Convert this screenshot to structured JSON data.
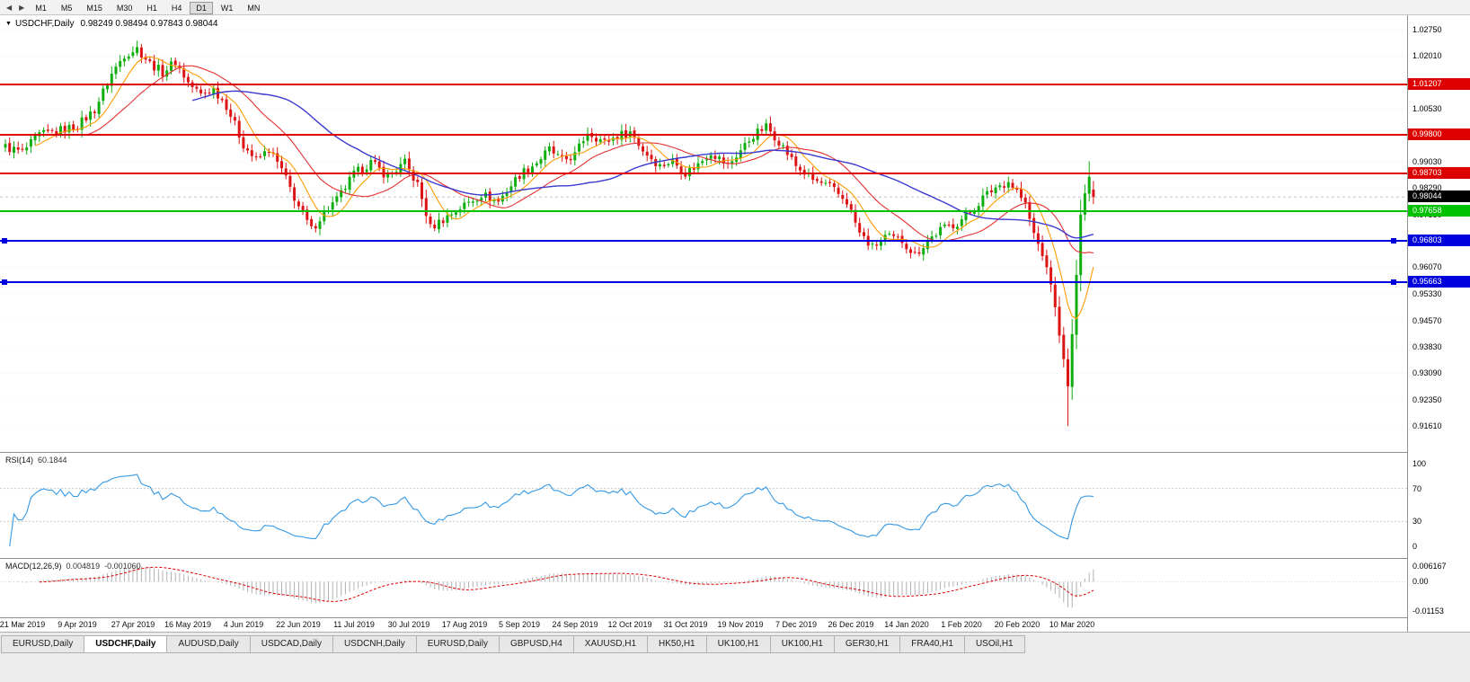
{
  "toolbar": {
    "nav_buttons": [
      {
        "id": "scroll-left",
        "glyph": "◀"
      },
      {
        "id": "scroll-right",
        "glyph": "▶"
      }
    ],
    "timeframes": [
      "M1",
      "M5",
      "M15",
      "M30",
      "H1",
      "H4",
      "D1",
      "W1",
      "MN"
    ],
    "active_timeframe": "D1"
  },
  "chart": {
    "marker_icon": "▼",
    "title": "USDCHF,Daily",
    "ohlc_text": "0.98249 0.98494 0.97843 0.98044"
  },
  "price_axis": {
    "min": 0.9088,
    "max": 1.0315,
    "ticks": [
      "1.02750",
      "1.02010",
      "1.01270",
      "1.00530",
      "0.99790",
      "0.99030",
      "0.98290",
      "0.97550",
      "0.96810",
      "0.96070",
      "0.95330",
      "0.94570",
      "0.93830",
      "0.93090",
      "0.92350",
      "0.91610"
    ]
  },
  "levels": [
    {
      "value": 1.01207,
      "label": "1.01207",
      "color": "#dd0000",
      "width": 2,
      "handles": false
    },
    {
      "value": 0.998,
      "label": "0.99800",
      "color": "#dd0000",
      "width": 2,
      "handles": false
    },
    {
      "value": 0.98703,
      "label": "0.98703",
      "color": "#dd0000",
      "width": 2,
      "handles": false
    },
    {
      "value": 0.97658,
      "label": "0.97658",
      "color": "#00c200",
      "width": 2,
      "handles": false
    },
    {
      "value": 0.96803,
      "label": "0.96803",
      "color": "#0000dd",
      "width": 2,
      "handles": true
    },
    {
      "value": 0.95663,
      "label": "0.95663",
      "color": "#0000dd",
      "width": 2,
      "handles": true
    }
  ],
  "current_price": {
    "value": 0.98044,
    "label": "0.98044",
    "badge_color": "#000000"
  },
  "panes": {
    "rsi": {
      "name": "RSI(14)",
      "value": "60.1844",
      "ticks": [
        "100",
        "70",
        "30",
        "0"
      ],
      "guides": [
        70,
        30
      ],
      "line_color": "#3399e6"
    },
    "macd": {
      "name": "MACD(12,26,9)",
      "value_main": "0.004819",
      "value_signal": "-0.001060",
      "ticks": [
        "0.006167",
        "0.00",
        "-0.01153"
      ],
      "hist_color": "#b0b0b0",
      "signal_color": "#e00000"
    }
  },
  "time_axis": [
    "21 Mar 2019",
    "9 Apr 2019",
    "27 Apr 2019",
    "16 May 2019",
    "4 Jun 2019",
    "22 Jun 2019",
    "11 Jul 2019",
    "30 Jul 2019",
    "17 Aug 2019",
    "5 Sep 2019",
    "24 Sep 2019",
    "12 Oct 2019",
    "31 Oct 2019",
    "19 Nov 2019",
    "7 Dec 2019",
    "26 Dec 2019",
    "14 Jan 2020",
    "1 Feb 2020",
    "20 Feb 2020",
    "10 Mar 2020"
  ],
  "tabs": [
    "EURUSD,Daily",
    "USDCHF,Daily",
    "AUDUSD,Daily",
    "USDCAD,Daily",
    "USDCNH,Daily",
    "EURUSD,Daily",
    "GBPUSD,H4",
    "XAUUSD,H1",
    "HK50,H1",
    "UK100,H1",
    "UK100,H1",
    "GER30,H1",
    "FRA40,H1",
    "USOil,H1"
  ],
  "active_tab_index": 1,
  "colors": {
    "bull": "#0fae0f",
    "bear": "#dc1414",
    "background": "#ffffff",
    "grid": "#ececec"
  },
  "chart_data": {
    "type": "candlestick",
    "symbol": "USDCHF",
    "period": "Daily",
    "bars": 257,
    "last_bar": {
      "open": 0.98249,
      "high": 0.98494,
      "low": 0.97843,
      "close": 0.98044
    },
    "crash_low": {
      "bar": 250,
      "price": 0.9161
    },
    "rally_high": {
      "bar": 255,
      "price": 0.9905
    },
    "calm_from": 241,
    "price_path": [
      [
        0,
        0.9945
      ],
      [
        4,
        0.993
      ],
      [
        8,
        0.9978
      ],
      [
        13,
        0.9992
      ],
      [
        17,
        1.0005
      ],
      [
        21,
        1.005
      ],
      [
        25,
        1.015
      ],
      [
        28,
        1.0205
      ],
      [
        31,
        1.0222
      ],
      [
        34,
        1.018
      ],
      [
        37,
        1.0155
      ],
      [
        40,
        1.0185
      ],
      [
        43,
        1.0125
      ],
      [
        46,
        1.0092
      ],
      [
        49,
        1.0108
      ],
      [
        52,
        1.0062
      ],
      [
        56,
        0.9952
      ],
      [
        59,
        0.9906
      ],
      [
        62,
        0.9938
      ],
      [
        65,
        0.988
      ],
      [
        69,
        0.9778
      ],
      [
        72,
        0.9712
      ],
      [
        75,
        0.9762
      ],
      [
        78,
        0.9796
      ],
      [
        82,
        0.9868
      ],
      [
        86,
        0.9902
      ],
      [
        90,
        0.9862
      ],
      [
        94,
        0.99
      ],
      [
        97,
        0.9838
      ],
      [
        100,
        0.9718
      ],
      [
        103,
        0.9742
      ],
      [
        108,
        0.9782
      ],
      [
        112,
        0.9812
      ],
      [
        116,
        0.9792
      ],
      [
        121,
        0.9868
      ],
      [
        125,
        0.9902
      ],
      [
        128,
        0.9938
      ],
      [
        131,
        0.9906
      ],
      [
        134,
        0.9922
      ],
      [
        137,
        0.9988
      ],
      [
        141,
        0.9958
      ],
      [
        144,
        0.9976
      ],
      [
        147,
        0.9988
      ],
      [
        150,
        0.9936
      ],
      [
        154,
        0.9892
      ],
      [
        157,
        0.9906
      ],
      [
        160,
        0.9872
      ],
      [
        163,
        0.9896
      ],
      [
        166,
        0.9932
      ],
      [
        170,
        0.9892
      ],
      [
        173,
        0.9936
      ],
      [
        176,
        0.9978
      ],
      [
        179,
        1.0002
      ],
      [
        182,
        0.9962
      ],
      [
        186,
        0.9892
      ],
      [
        190,
        0.9852
      ],
      [
        194,
        0.9832
      ],
      [
        198,
        0.9792
      ],
      [
        201,
        0.9702
      ],
      [
        204,
        0.9662
      ],
      [
        207,
        0.9692
      ],
      [
        211,
        0.9682
      ],
      [
        214,
        0.9642
      ],
      [
        217,
        0.9682
      ],
      [
        220,
        0.9712
      ],
      [
        224,
        0.9732
      ],
      [
        227,
        0.9762
      ],
      [
        230,
        0.9802
      ],
      [
        233,
        0.9832
      ],
      [
        236,
        0.9848
      ],
      [
        238,
        0.9822
      ],
      [
        240,
        0.9782
      ],
      [
        242,
        0.9702
      ],
      [
        244,
        0.9642
      ],
      [
        246,
        0.9562
      ],
      [
        248,
        0.942
      ],
      [
        250,
        0.927
      ],
      [
        251,
        0.942
      ],
      [
        252,
        0.958
      ],
      [
        253,
        0.976
      ],
      [
        254,
        0.982
      ],
      [
        255,
        0.9862
      ],
      [
        256,
        0.98044
      ]
    ],
    "moving_averages": [
      {
        "period": 8,
        "color": "#ff9c00",
        "width": 1.1
      },
      {
        "period": 20,
        "color": "#e43030",
        "width": 1.1
      },
      {
        "period": 45,
        "color": "#3a3ad0",
        "width": 1.4
      }
    ],
    "rsi_period": 14,
    "macd": [
      12,
      26,
      9
    ],
    "last_values": {
      "rsi": 60.1844,
      "macd": 0.004819,
      "signal": -0.00106
    }
  }
}
